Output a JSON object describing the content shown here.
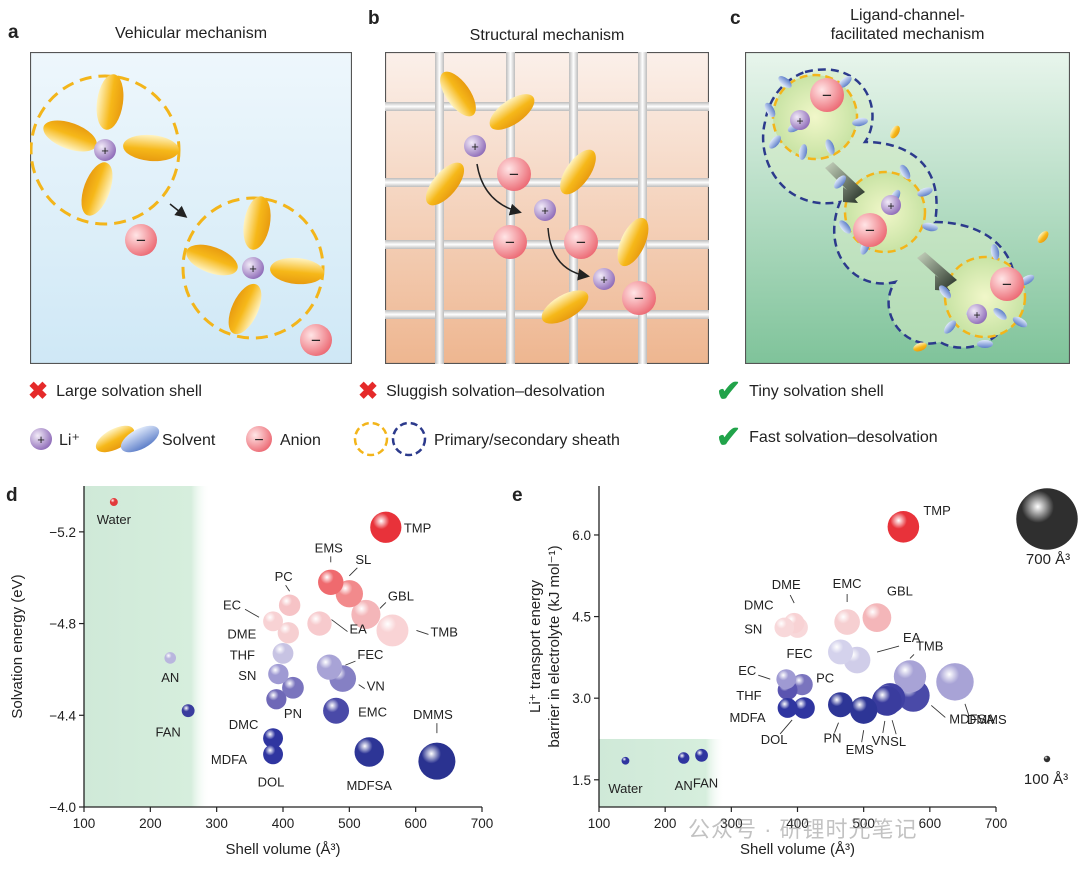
{
  "panels": {
    "a": {
      "letter": "a",
      "title": "Vehicular mechanism"
    },
    "b": {
      "letter": "b",
      "title": "Structural mechanism"
    },
    "c": {
      "letter": "c",
      "title_line1": "Ligand-channel-",
      "title_line2": "facilitated mechanism"
    }
  },
  "legend": {
    "large_shell": "Large solvation shell",
    "sluggish": "Sluggish solvation–desolvation",
    "tiny_shell": "Tiny solvation shell",
    "fast": "Fast solvation–desolvation",
    "li": "Li⁺",
    "solvent": "Solvent",
    "anion": "Anion",
    "sheath": "Primary/secondary sheath",
    "plus": "+",
    "minus": "−"
  },
  "colors": {
    "li": "#a98bc9",
    "anion": "#f07c84",
    "solvent": "#f5b81c",
    "secondary": "#2c3a8c",
    "cross": "#e52a2a",
    "check": "#21a34a",
    "bg_a": "#dbeef9",
    "bg_b": "#f0c6aa",
    "bg_c": "#8fcba2"
  },
  "chart_data": [
    {
      "letter": "d",
      "type": "scatter",
      "xlabel": "Shell volume (Å³)",
      "ylabel": "Solvation energy (eV)",
      "xlim": [
        100,
        700
      ],
      "ylim": [
        -5.4,
        -4.0
      ],
      "y_reversed": true,
      "xticks": [
        100,
        200,
        300,
        400,
        500,
        600,
        700
      ],
      "yticks": [
        -5.2,
        -4.8,
        -4.4,
        -4.0
      ],
      "xtick_labels": [
        "100",
        "200",
        "300",
        "400",
        "500",
        "600",
        "700"
      ],
      "ytick_labels": [
        "−5.2",
        "−4.8",
        "−4.4",
        "−4.0"
      ],
      "points": [
        {
          "label": "Water",
          "x": 145,
          "y": -5.33,
          "vol": 145,
          "color": "#e23a3a"
        },
        {
          "label": "TMP",
          "x": 555,
          "y": -5.22,
          "vol": 555,
          "color": "#e8323a"
        },
        {
          "label": "EMS",
          "x": 472,
          "y": -4.98,
          "vol": 472,
          "color": "#ef6a6e"
        },
        {
          "label": "SL",
          "x": 500,
          "y": -4.93,
          "vol": 500,
          "color": "#f28a8c"
        },
        {
          "label": "PC",
          "x": 410,
          "y": -4.88,
          "vol": 410,
          "color": "#f6c3c6"
        },
        {
          "label": "EC",
          "x": 385,
          "y": -4.81,
          "vol": 385,
          "color": "#f8d2d4"
        },
        {
          "label": "GBL",
          "x": 525,
          "y": -4.84,
          "vol": 525,
          "color": "#f4b6b9"
        },
        {
          "label": "TMB",
          "x": 565,
          "y": -4.77,
          "vol": 565,
          "color": "#f9d3d5"
        },
        {
          "label": "DME",
          "x": 408,
          "y": -4.76,
          "vol": 408,
          "color": "#f6cfd1"
        },
        {
          "label": "EA",
          "x": 455,
          "y": -4.8,
          "vol": 455,
          "color": "#f7cacd"
        },
        {
          "label": "THF",
          "x": 400,
          "y": -4.67,
          "vol": 400,
          "color": "#c7c3e3"
        },
        {
          "label": "AN",
          "x": 230,
          "y": -4.65,
          "vol": 230,
          "color": "#b9b6de"
        },
        {
          "label": "FEC",
          "x": 470,
          "y": -4.61,
          "vol": 470,
          "color": "#a8a3d6"
        },
        {
          "label": "SN",
          "x": 393,
          "y": -4.58,
          "vol": 393,
          "color": "#9f9ad3"
        },
        {
          "label": "VN",
          "x": 490,
          "y": -4.56,
          "vol": 490,
          "color": "#8580c4"
        },
        {
          "label": "DMC",
          "x": 390,
          "y": -4.47,
          "vol": 390,
          "color": "#6f68b7"
        },
        {
          "label": "PN",
          "x": 415,
          "y": -4.52,
          "vol": 415,
          "color": "#7a74be"
        },
        {
          "label": "FAN",
          "x": 257,
          "y": -4.42,
          "vol": 257,
          "color": "#3a3c9e"
        },
        {
          "label": "EMC",
          "x": 480,
          "y": -4.42,
          "vol": 480,
          "color": "#4a4aa8"
        },
        {
          "label": "MDFA",
          "x": 385,
          "y": -4.3,
          "vol": 385,
          "color": "#2f35a0"
        },
        {
          "label": "DOL",
          "x": 385,
          "y": -4.23,
          "vol": 385,
          "color": "#2f35a0"
        },
        {
          "label": "MDFSA",
          "x": 530,
          "y": -4.24,
          "vol": 530,
          "color": "#2d3596"
        },
        {
          "label": "DMMS",
          "x": 632,
          "y": -4.2,
          "vol": 632,
          "color": "#2a3290"
        }
      ],
      "shaded_region_x": [
        100,
        290
      ]
    },
    {
      "letter": "e",
      "type": "scatter",
      "xlabel": "Shell volume (Å³)",
      "ylabel_line1": "Li⁺ transport energy",
      "ylabel_line2": "barrier in electrolyte (kJ mol⁻¹)",
      "xlim": [
        100,
        700
      ],
      "ylim": [
        1.0,
        6.9
      ],
      "xticks": [
        100,
        200,
        300,
        400,
        500,
        600,
        700
      ],
      "yticks": [
        1.5,
        3.0,
        4.5,
        6.0
      ],
      "xtick_labels": [
        "100",
        "200",
        "300",
        "400",
        "500",
        "600",
        "700"
      ],
      "ytick_labels": [
        "1.5",
        "3.0",
        "4.5",
        "6.0"
      ],
      "points": [
        {
          "label": "Water",
          "x": 140,
          "y": 1.85,
          "vol": 140,
          "color": "#2f35a0"
        },
        {
          "label": "AN",
          "x": 228,
          "y": 1.9,
          "vol": 228,
          "color": "#2f35a0"
        },
        {
          "label": "FAN",
          "x": 255,
          "y": 1.95,
          "vol": 255,
          "color": "#2f35a0"
        },
        {
          "label": "TMP",
          "x": 560,
          "y": 6.15,
          "vol": 560,
          "color": "#e8323a"
        },
        {
          "label": "DME",
          "x": 395,
          "y": 4.38,
          "vol": 395,
          "color": "#f8d2d4"
        },
        {
          "label": "DMC",
          "x": 400,
          "y": 4.3,
          "vol": 400,
          "color": "#f8d8da"
        },
        {
          "label": "SN",
          "x": 380,
          "y": 4.3,
          "vol": 380,
          "color": "#f8d8da"
        },
        {
          "label": "EMC",
          "x": 475,
          "y": 4.4,
          "vol": 475,
          "color": "#f6cfd1"
        },
        {
          "label": "GBL",
          "x": 520,
          "y": 4.48,
          "vol": 520,
          "color": "#f4b6b9"
        },
        {
          "label": "FEC",
          "x": 465,
          "y": 3.85,
          "vol": 465,
          "color": "#d4d2ec"
        },
        {
          "label": "EA",
          "x": 490,
          "y": 3.7,
          "vol": 490,
          "color": "#d0cde9"
        },
        {
          "label": "TMB",
          "x": 570,
          "y": 3.4,
          "vol": 570,
          "color": "#a8a3d6"
        },
        {
          "label": "EC",
          "x": 383,
          "y": 3.35,
          "vol": 383,
          "color": "#9f9ad3"
        },
        {
          "label": "PC",
          "x": 407,
          "y": 3.25,
          "vol": 407,
          "color": "#7a74be"
        },
        {
          "label": "THF",
          "x": 385,
          "y": 3.15,
          "vol": 385,
          "color": "#5a54b0"
        },
        {
          "label": "DMMS",
          "x": 638,
          "y": 3.3,
          "vol": 638,
          "color": "#a8a3d6"
        },
        {
          "label": "MDFA",
          "x": 385,
          "y": 2.82,
          "vol": 385,
          "color": "#2f35a0"
        },
        {
          "label": "DOL",
          "x": 410,
          "y": 2.82,
          "vol": 410,
          "color": "#2f35a0"
        },
        {
          "label": "PN",
          "x": 465,
          "y": 2.88,
          "vol": 465,
          "color": "#2d3596"
        },
        {
          "label": "EMS",
          "x": 500,
          "y": 2.78,
          "vol": 500,
          "color": "#2d3596"
        },
        {
          "label": "VN",
          "x": 535,
          "y": 2.95,
          "vol": 535,
          "color": "#3a3c9e"
        },
        {
          "label": "SL",
          "x": 540,
          "y": 3.0,
          "vol": 540,
          "color": "#3f40a3"
        },
        {
          "label": "MDFSA",
          "x": 575,
          "y": 3.05,
          "vol": 575,
          "color": "#4a4aa8"
        }
      ],
      "size_legend": [
        {
          "label": "700 Å³",
          "vol": 700
        },
        {
          "label": "100 Å³",
          "vol": 100
        }
      ],
      "shaded_region": {
        "x": [
          100,
          290
        ],
        "y": [
          1.0,
          2.25
        ]
      }
    }
  ],
  "watermark": "公众号 · 研锂时光笔记"
}
